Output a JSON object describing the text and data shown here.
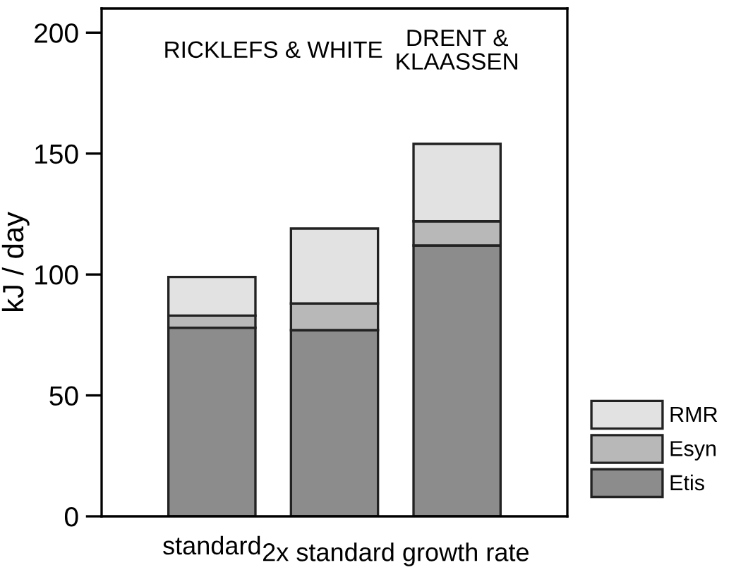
{
  "chart_data": {
    "type": "bar",
    "stacked": true,
    "ylabel": "kJ / day",
    "categories": [
      "standard",
      null,
      null
    ],
    "series": [
      {
        "name": "Etis",
        "color": "#8c8c8c",
        "values": [
          78,
          77,
          112
        ]
      },
      {
        "name": "Esyn",
        "color": "#b8b8b8",
        "values": [
          5,
          11,
          10
        ]
      },
      {
        "name": "RMR",
        "color": "#e2e2e2",
        "values": [
          16,
          31,
          32
        ]
      }
    ],
    "ylim": [
      0,
      210
    ],
    "yticks": [
      0,
      50,
      100,
      150,
      200
    ],
    "grid": false,
    "legend": "bottom right",
    "annotations": [
      "RICKLEFS & WHITE",
      "DRENT &\nKLAASSEN",
      "2x standard growth rate"
    ]
  }
}
